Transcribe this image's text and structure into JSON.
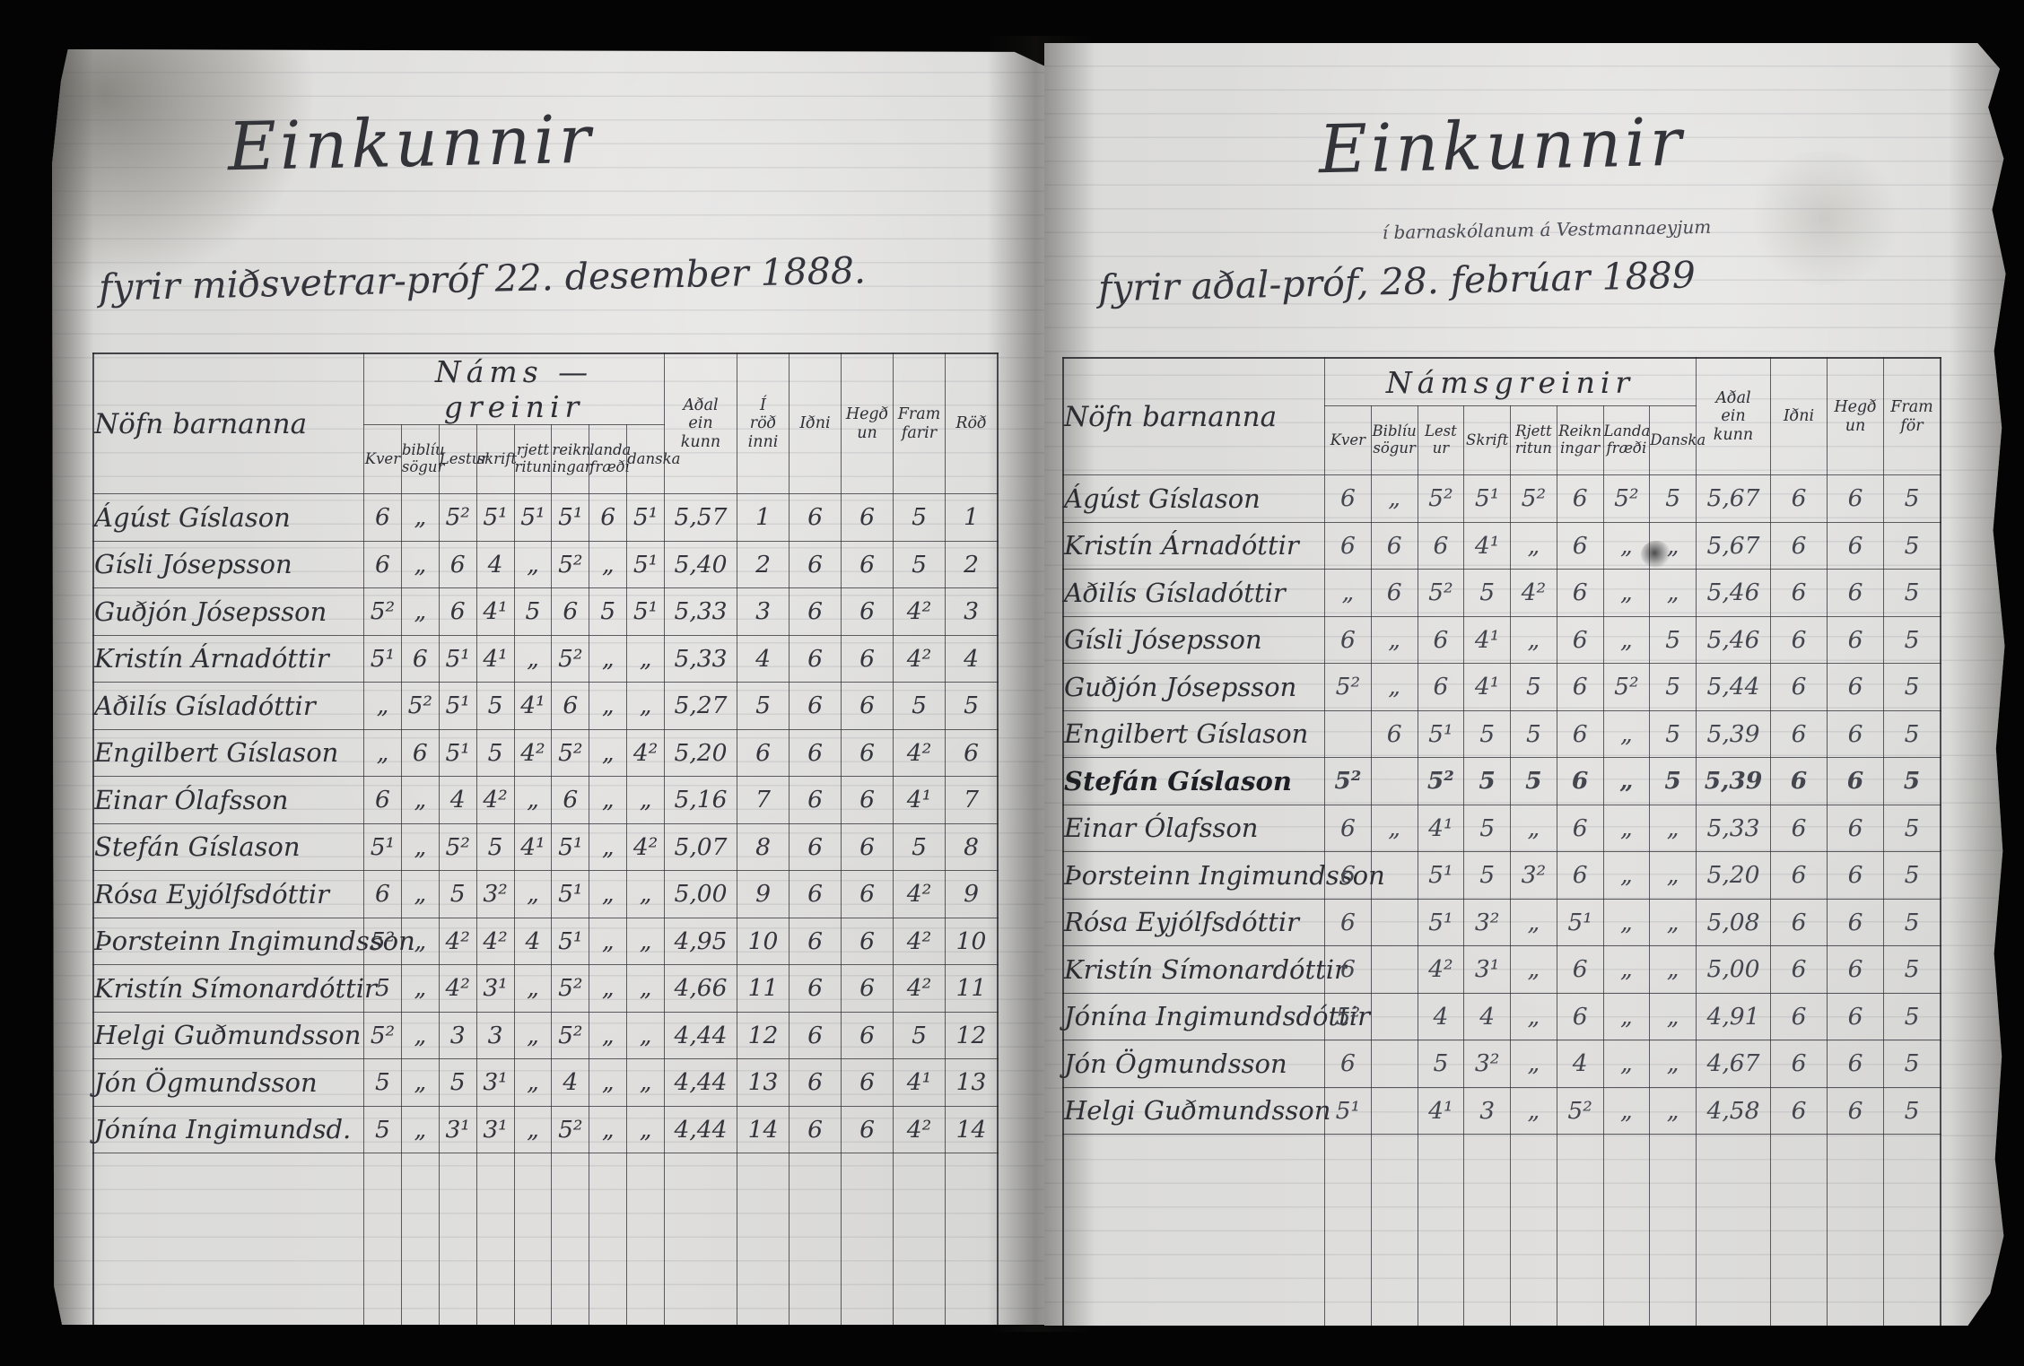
{
  "scan": {
    "background_color": "#040404",
    "paper_color": "#dcdbd9",
    "ink_color": "#2e2f35"
  },
  "left_page": {
    "title": "Einkunnir",
    "subtitle": "fyrir miðsvetrar-próf 22. desember 1888.",
    "table": {
      "name_header": "Nöfn barnanna",
      "group_header": "Náms — greinir",
      "subject_columns": [
        "Kver",
        "biblíu\nsögur",
        "Lestur",
        "skrift",
        "rjett\nritun",
        "reikn\ningar",
        "landa\nfræði",
        "danska"
      ],
      "extra_columns": [
        "Aðal\nein\nkunn",
        "Í\nröð\ninni",
        "Iðni",
        "Hegð\nun",
        "Fram\nfarir",
        "Röð"
      ],
      "rows": [
        {
          "name": "Ágúst Gíslason",
          "cells": [
            "6",
            "„",
            "5²",
            "5¹",
            "5¹",
            "5¹",
            "6",
            "5¹",
            "5,57",
            "1",
            "6",
            "6",
            "5",
            "1"
          ]
        },
        {
          "name": "Gísli Jósepsson",
          "cells": [
            "6",
            "„",
            "6",
            "4",
            "„",
            "5²",
            "„",
            "5¹",
            "5,40",
            "2",
            "6",
            "6",
            "5",
            "2"
          ]
        },
        {
          "name": "Guðjón Jósepsson",
          "cells": [
            "5²",
            "„",
            "6",
            "4¹",
            "5",
            "6",
            "5",
            "5¹",
            "5,33",
            "3",
            "6",
            "6",
            "4²",
            "3"
          ]
        },
        {
          "name": "Kristín Árnadóttir",
          "cells": [
            "5¹",
            "6",
            "5¹",
            "4¹",
            "„",
            "5²",
            "„",
            "„",
            "5,33",
            "4",
            "6",
            "6",
            "4²",
            "4"
          ]
        },
        {
          "name": "Aðilís Gísladóttir",
          "cells": [
            "„",
            "5²",
            "5¹",
            "5",
            "4¹",
            "6",
            "„",
            "„",
            "5,27",
            "5",
            "6",
            "6",
            "5",
            "5"
          ]
        },
        {
          "name": "Engilbert Gíslason",
          "cells": [
            "„",
            "6",
            "5¹",
            "5",
            "4²",
            "5²",
            "„",
            "4²",
            "5,20",
            "6",
            "6",
            "6",
            "4²",
            "6"
          ]
        },
        {
          "name": "Einar Ólafsson",
          "cells": [
            "6",
            "„",
            "4",
            "4²",
            "„",
            "6",
            "„",
            "„",
            "5,16",
            "7",
            "6",
            "6",
            "4¹",
            "7"
          ]
        },
        {
          "name": "Stefán Gíslason",
          "cells": [
            "5¹",
            "„",
            "5²",
            "5",
            "4¹",
            "5¹",
            "„",
            "4²",
            "5,07",
            "8",
            "6",
            "6",
            "5",
            "8"
          ]
        },
        {
          "name": "Rósa Eyjólfsdóttir",
          "cells": [
            "6",
            "„",
            "5",
            "3²",
            "„",
            "5¹",
            "„",
            "„",
            "5,00",
            "9",
            "6",
            "6",
            "4²",
            "9"
          ]
        },
        {
          "name": "Þorsteinn Ingimundsson",
          "cells": [
            "5²",
            "„",
            "4²",
            "4²",
            "4",
            "5¹",
            "„",
            "„",
            "4,95",
            "10",
            "6",
            "6",
            "4²",
            "10"
          ]
        },
        {
          "name": "Kristín Símonardóttir",
          "cells": [
            "5",
            "„",
            "4²",
            "3¹",
            "„",
            "5²",
            "„",
            "„",
            "4,66",
            "11",
            "6",
            "6",
            "4²",
            "11"
          ]
        },
        {
          "name": "Helgi Guðmundsson",
          "cells": [
            "5²",
            "„",
            "3",
            "3",
            "„",
            "5²",
            "„",
            "„",
            "4,44",
            "12",
            "6",
            "6",
            "5",
            "12"
          ]
        },
        {
          "name": "Jón Ögmundsson",
          "cells": [
            "5",
            "„",
            "5",
            "3¹",
            "„",
            "4",
            "„",
            "„",
            "4,44",
            "13",
            "6",
            "6",
            "4¹",
            "13"
          ]
        },
        {
          "name": "Jónína Ingimundsd.",
          "cells": [
            "5",
            "„",
            "3¹",
            "3¹",
            "„",
            "5²",
            "„",
            "„",
            "4,44",
            "14",
            "6",
            "6",
            "4²",
            "14"
          ]
        }
      ]
    }
  },
  "right_page": {
    "title": "Einkunnir",
    "location_note": "í barnaskólanum á Vestmannaeyjum",
    "subtitle": "fyrir aðal-próf, 28. febrúar 1889",
    "table": {
      "name_header": "Nöfn barnanna",
      "group_header": "Námsgreinir",
      "subject_columns": [
        "Kver",
        "Biblíu\nsögur",
        "Lest\nur",
        "Skrift",
        "Rjett\nritun",
        "Reikn\ningar",
        "Landa\nfræði",
        "Danska"
      ],
      "extra_columns": [
        "Aðal\nein\nkunn",
        "Iðni",
        "Hegð\nun",
        "Fram\nför"
      ],
      "rows": [
        {
          "name": "Ágúst Gíslason",
          "cells": [
            "6",
            "„",
            "5²",
            "5¹",
            "5²",
            "6",
            "5²",
            "5",
            "5,67",
            "6",
            "6",
            "5"
          ]
        },
        {
          "name": "Kristín Árnadóttir",
          "cells": [
            "6",
            "6",
            "6",
            "4¹",
            "„",
            "6",
            "„",
            "„",
            "5,67",
            "6",
            "6",
            "5"
          ]
        },
        {
          "name": "Aðilís Gísladóttir",
          "cells": [
            "„",
            "6",
            "5²",
            "5",
            "4²",
            "6",
            "„",
            "„",
            "5,46",
            "6",
            "6",
            "5"
          ]
        },
        {
          "name": "Gísli Jósepsson",
          "cells": [
            "6",
            "„",
            "6",
            "4¹",
            "„",
            "6",
            "„",
            "5",
            "5,46",
            "6",
            "6",
            "5"
          ]
        },
        {
          "name": "Guðjón Jósepsson",
          "cells": [
            "5²",
            "„",
            "6",
            "4¹",
            "5",
            "6",
            "5²",
            "5",
            "5,44",
            "6",
            "6",
            "5"
          ]
        },
        {
          "name": "Engilbert Gíslason",
          "cells": [
            "",
            "6",
            "5¹",
            "5",
            "5",
            "6",
            "„",
            "5",
            "5,39",
            "6",
            "6",
            "5"
          ]
        },
        {
          "name": "Stefán Gíslason",
          "cells": [
            "5²",
            "",
            "5²",
            "5",
            "5",
            "6",
            "„",
            "5",
            "5,39",
            "6",
            "6",
            "5"
          ],
          "emphasis": true
        },
        {
          "name": "Einar Ólafsson",
          "cells": [
            "6",
            "„",
            "4¹",
            "5",
            "„",
            "6",
            "„",
            "„",
            "5,33",
            "6",
            "6",
            "5"
          ]
        },
        {
          "name": "Þorsteinn Ingimundsson",
          "cells": [
            "6",
            "",
            "5¹",
            "5",
            "3²",
            "6",
            "„",
            "„",
            "5,20",
            "6",
            "6",
            "5"
          ]
        },
        {
          "name": "Rósa Eyjólfsdóttir",
          "cells": [
            "6",
            "",
            "5¹",
            "3²",
            "„",
            "5¹",
            "„",
            "„",
            "5,08",
            "6",
            "6",
            "5"
          ]
        },
        {
          "name": "Kristín Símonardóttir",
          "cells": [
            "6",
            "",
            "4²",
            "3¹",
            "„",
            "6",
            "„",
            "„",
            "5,00",
            "6",
            "6",
            "5"
          ]
        },
        {
          "name": "Jónína Ingimundsdóttir",
          "cells": [
            "5²",
            "",
            "4",
            "4",
            "„",
            "6",
            "„",
            "„",
            "4,91",
            "6",
            "6",
            "5"
          ]
        },
        {
          "name": "Jón Ögmundsson",
          "cells": [
            "6",
            "",
            "5",
            "3²",
            "„",
            "4",
            "„",
            "„",
            "4,67",
            "6",
            "6",
            "5"
          ]
        },
        {
          "name": "Helgi Guðmundsson",
          "cells": [
            "5¹",
            "",
            "4¹",
            "3",
            "„",
            "5²",
            "„",
            "„",
            "4,58",
            "6",
            "6",
            "5"
          ]
        }
      ]
    }
  }
}
